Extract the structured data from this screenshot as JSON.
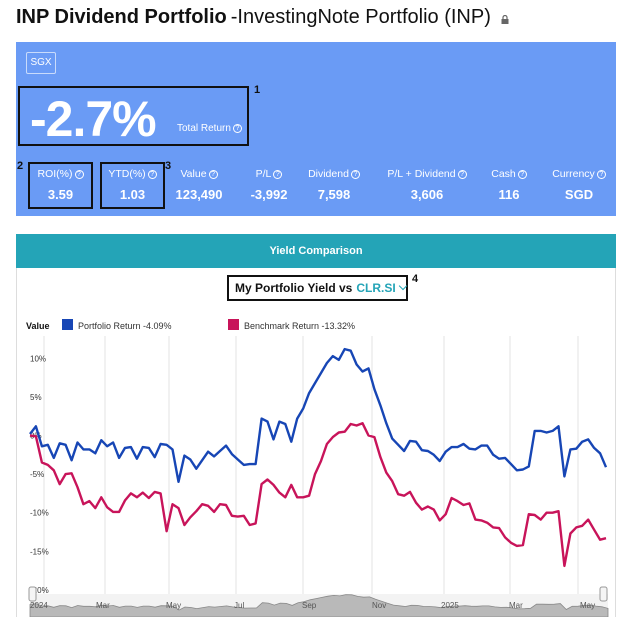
{
  "header": {
    "title": "INP Dividend Portfolio",
    "subtitle": "-InvestingNote Portfolio (INP)"
  },
  "summary": {
    "exchange": "SGX",
    "total_return_value": "-2.7%",
    "total_return_label": "Total Return",
    "metrics": [
      {
        "label": "ROI(%)",
        "value": "3.59"
      },
      {
        "label": "YTD(%)",
        "value": "1.03"
      },
      {
        "label": "Value",
        "value": "123,490"
      },
      {
        "label": "P/L",
        "value": "-3,992"
      },
      {
        "label": "Dividend",
        "value": "7,598"
      },
      {
        "label": "P/L + Dividend",
        "value": "3,606"
      },
      {
        "label": "Cash",
        "value": "116"
      },
      {
        "label": "Currency",
        "value": "SGD"
      }
    ],
    "help_icon": "question-circle-icon"
  },
  "annotations": [
    "1",
    "2",
    "3",
    "4"
  ],
  "yield": {
    "header": "Yield Comparison",
    "selector_prefix": "My Portfolio Yield vs",
    "selector_ticker": "CLR.SI"
  },
  "colors": {
    "summary_bg": "#6a9bf5",
    "yield_header_bg": "#24a4b7",
    "portfolio": "#1746b5",
    "benchmark": "#c8145a"
  },
  "chart_data": {
    "type": "line",
    "legend_title": "Value",
    "series": [
      {
        "name": "Portfolio Return -4.09%",
        "values": [
          0.2,
          1.2,
          -1.4,
          -1.2,
          -2.9,
          -1.0,
          -1.2,
          -3.2,
          -0.9,
          -1.8,
          -1.8,
          -2.3,
          -0.6,
          -1.4,
          -0.9,
          -2.9,
          -1.6,
          -1.5,
          -3.0,
          -1.5,
          -1.6,
          -2.8,
          -1.1,
          -1.2,
          -1.8,
          -6.0,
          -2.6,
          -3.1,
          -4.3,
          -3.2,
          -2.1,
          -2.7,
          -2.0,
          -1.3,
          -2.4,
          -3.1,
          -3.8,
          -3.7,
          -3.7,
          2.2,
          1.8,
          -0.5,
          1.8,
          1.5,
          -0.8,
          2.2,
          3.5,
          5.5,
          6.8,
          8.1,
          9.4,
          10.3,
          9.8,
          11.2,
          11.0,
          9.2,
          8.3,
          8.7,
          6.0,
          3.9,
          1.6,
          -0.4,
          -1.2,
          -2.0,
          -0.7,
          -0.8,
          -1.9,
          -2.0,
          -2.5,
          -3.3,
          -2.1,
          -1.5,
          -1.5,
          -1.1,
          -1.7,
          -1.8,
          -1.3,
          -1.3,
          -2.5,
          -3.0,
          -2.9,
          -3.7,
          -4.5,
          -4.4,
          -4.0,
          0.6,
          0.6,
          0.4,
          0.6,
          1.2,
          -5.3,
          -1.8,
          -1.7,
          -0.8,
          -0.5,
          -1.6,
          -2.3,
          -4.1
        ]
      },
      {
        "name": "Benchmark Return -13.32%",
        "values": [
          0.0,
          -0.1,
          -3.5,
          -3.8,
          -4.5,
          -6.3,
          -5.0,
          -4.9,
          -6.7,
          -8.9,
          -8.5,
          -9.4,
          -8.0,
          -9.3,
          -9.9,
          -9.9,
          -8.4,
          -7.5,
          -8.0,
          -7.4,
          -8.1,
          -7.3,
          -7.5,
          -12.4,
          -8.9,
          -9.4,
          -11.6,
          -10.6,
          -9.8,
          -8.9,
          -9.1,
          -9.9,
          -8.9,
          -9.0,
          -10.4,
          -10.5,
          -10.4,
          -11.6,
          -11.4,
          -6.3,
          -5.7,
          -6.4,
          -7.4,
          -8.0,
          -6.4,
          -8.0,
          -8.0,
          -7.8,
          -5.0,
          -3.3,
          -1.1,
          -0.2,
          0.4,
          0.5,
          1.5,
          1.3,
          1.6,
          0.0,
          -0.2,
          -2.8,
          -4.8,
          -5.9,
          -7.6,
          -7.8,
          -7.3,
          -8.7,
          -9.6,
          -9.2,
          -9.6,
          -11.0,
          -10.2,
          -8.1,
          -8.5,
          -9.0,
          -8.8,
          -10.9,
          -11.0,
          -11.3,
          -11.9,
          -12.0,
          -13.2,
          -13.9,
          -14.3,
          -14.2,
          -10.2,
          -10.3,
          -10.9,
          -10.0,
          -10.0,
          -9.8,
          -16.9,
          -12.7,
          -11.9,
          -11.7,
          -10.9,
          -12.2,
          -13.5,
          -13.3
        ]
      }
    ],
    "y_ticks": [
      "10%",
      "5%",
      "0%",
      "-5%",
      "-10%",
      "-15%",
      "-20%"
    ],
    "ylim": [
      -20,
      13
    ],
    "navigator_labels": [
      "2024",
      "Mar",
      "May",
      "Jul",
      "Sep",
      "Nov",
      "2025",
      "Mar",
      "May"
    ],
    "grid": true
  }
}
